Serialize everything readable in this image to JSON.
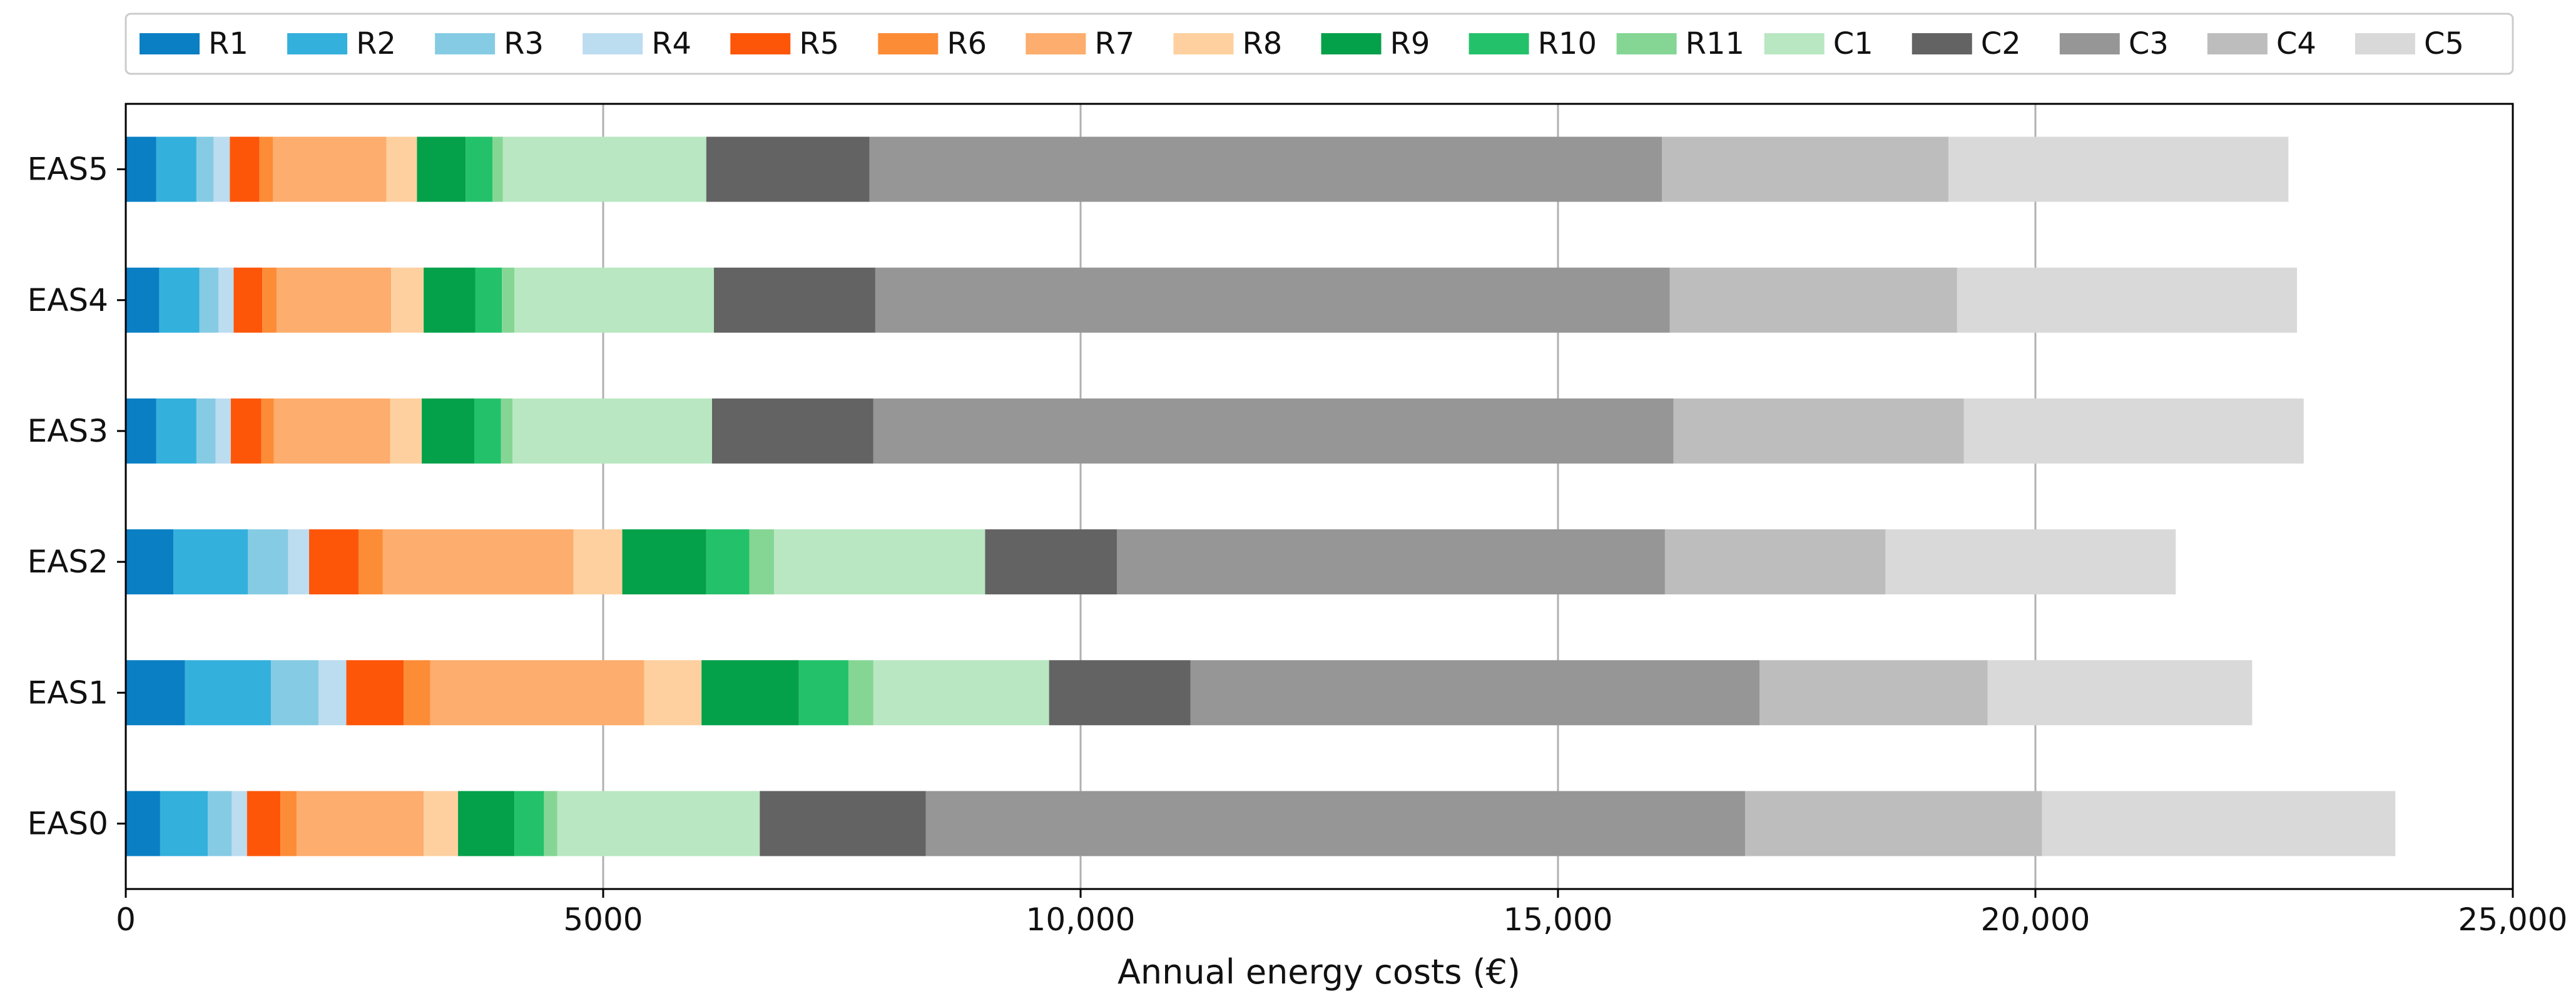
{
  "chart_data": {
    "type": "bar",
    "orientation": "horizontal",
    "stacked": true,
    "title": "",
    "xlabel": "Annual energy costs (€)",
    "ylabel": "",
    "xlim": [
      0,
      25000
    ],
    "x_ticks": [
      0,
      5000,
      10000,
      15000,
      20000,
      25000
    ],
    "x_tick_labels": [
      "0",
      "5000",
      "10,000",
      "15,000",
      "20,000",
      "25,000"
    ],
    "grid": "vertical",
    "legend_position": "top",
    "categories": [
      "EAS5",
      "EAS4",
      "EAS3",
      "EAS2",
      "EAS1",
      "EAS0"
    ],
    "series": [
      {
        "name": "R1",
        "color": "#0a7fc4",
        "values": [
          320,
          350,
          320,
          500,
          620,
          360
        ]
      },
      {
        "name": "R2",
        "color": "#34b0dc",
        "values": [
          420,
          420,
          420,
          780,
          900,
          500
        ]
      },
      {
        "name": "R3",
        "color": "#86cbe4",
        "values": [
          180,
          200,
          200,
          420,
          500,
          250
        ]
      },
      {
        "name": "R4",
        "color": "#bcdcf0",
        "values": [
          170,
          160,
          160,
          220,
          290,
          160
        ]
      },
      {
        "name": "R5",
        "color": "#fd5609",
        "values": [
          310,
          300,
          320,
          520,
          600,
          350
        ]
      },
      {
        "name": "R6",
        "color": "#fd8c37",
        "values": [
          140,
          150,
          130,
          250,
          280,
          170
        ]
      },
      {
        "name": "R7",
        "color": "#fdad6d",
        "values": [
          1190,
          1200,
          1220,
          2000,
          2240,
          1330
        ]
      },
      {
        "name": "R8",
        "color": "#fed09f",
        "values": [
          320,
          340,
          330,
          510,
          600,
          360
        ]
      },
      {
        "name": "R9",
        "color": "#05a04a",
        "values": [
          510,
          540,
          550,
          880,
          1020,
          590
        ]
      },
      {
        "name": "R10",
        "color": "#24c16b",
        "values": [
          280,
          280,
          280,
          450,
          520,
          310
        ]
      },
      {
        "name": "R11",
        "color": "#85d694",
        "values": [
          110,
          130,
          120,
          260,
          260,
          140
        ]
      },
      {
        "name": "C1",
        "color": "#b8e7c1",
        "values": [
          2130,
          2090,
          2090,
          2210,
          1840,
          2120
        ]
      },
      {
        "name": "C2",
        "color": "#636363",
        "values": [
          1710,
          1690,
          1690,
          1380,
          1480,
          1740
        ]
      },
      {
        "name": "C3",
        "color": "#969696",
        "values": [
          8300,
          8320,
          8380,
          5740,
          5960,
          8580
        ]
      },
      {
        "name": "C4",
        "color": "#bdbdbd",
        "values": [
          3000,
          3010,
          3040,
          2310,
          2390,
          3110
        ]
      },
      {
        "name": "C5",
        "color": "#d9d9d9",
        "values": [
          3560,
          3560,
          3560,
          3040,
          2770,
          3700
        ]
      }
    ]
  }
}
